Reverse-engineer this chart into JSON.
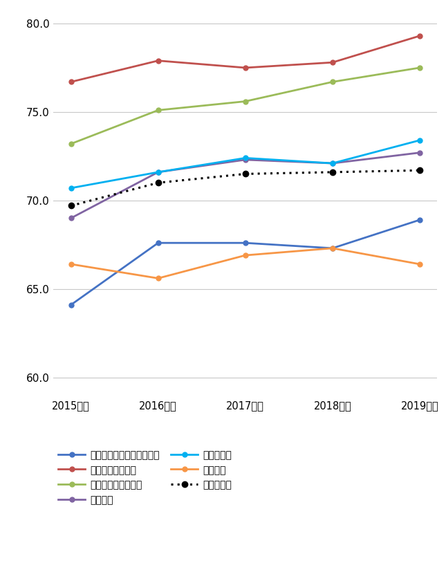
{
  "years": [
    "2015年度",
    "2016年度",
    "2017年度",
    "2018年度",
    "2019年度"
  ],
  "series": [
    {
      "name": "コンビニエンスストア平均",
      "values": [
        64.1,
        67.6,
        67.6,
        67.3,
        68.9
      ],
      "color": "#4472C4",
      "marker": "o",
      "linestyle": "-"
    },
    {
      "name": "シティホテル平均",
      "values": [
        76.7,
        77.9,
        77.5,
        77.8,
        79.3
      ],
      "color": "#C0504D",
      "marker": "o",
      "linestyle": "-"
    },
    {
      "name": "ビジネスホテル平均",
      "values": [
        73.2,
        75.1,
        75.6,
        76.7,
        77.5
      ],
      "color": "#9BBB59",
      "marker": "o",
      "linestyle": "-"
    },
    {
      "name": "飲食平均",
      "values": [
        69.0,
        71.6,
        72.3,
        72.1,
        72.7
      ],
      "color": "#8064A2",
      "marker": "o",
      "linestyle": "-"
    },
    {
      "name": "カフェ平均",
      "values": [
        70.7,
        71.6,
        72.4,
        72.1,
        73.4
      ],
      "color": "#00B0F0",
      "marker": "o",
      "linestyle": "-"
    },
    {
      "name": "証券平均",
      "values": [
        66.4,
        65.6,
        66.9,
        67.3,
        66.4
      ],
      "color": "#F79646",
      "marker": "o",
      "linestyle": "-"
    },
    {
      "name": "全業種平均",
      "values": [
        69.7,
        71.0,
        71.5,
        71.6,
        71.7
      ],
      "color": "#000000",
      "marker": "o",
      "linestyle": ":"
    }
  ],
  "ylim": [
    59.0,
    81.0
  ],
  "yticks": [
    60.0,
    65.0,
    70.0,
    75.0,
    80.0
  ],
  "background_color": "#FFFFFF",
  "grid_color": "#C8C8C8",
  "marker_size": 5,
  "linewidth": 2.0
}
